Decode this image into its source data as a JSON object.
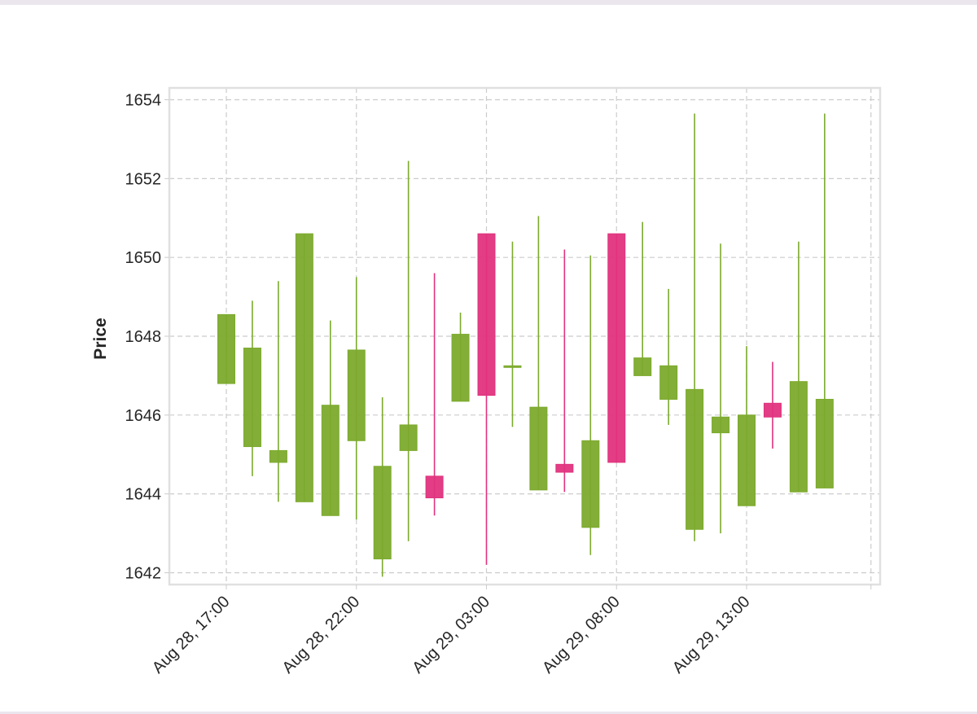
{
  "chart_data": {
    "type": "candlestick",
    "title": "",
    "xlabel": "",
    "ylabel": "Price",
    "ylim": [
      1641.7,
      1654.3
    ],
    "yticks": [
      1642,
      1644,
      1646,
      1648,
      1650,
      1652,
      1654
    ],
    "xticks": [
      {
        "index": 0,
        "label": "Aug 28, 17:00"
      },
      {
        "index": 5,
        "label": "Aug 28, 22:00"
      },
      {
        "index": 10,
        "label": "Aug 29, 03:00"
      },
      {
        "index": 15,
        "label": "Aug 29, 08:00"
      },
      {
        "index": 20,
        "label": "Aug 29, 13:00"
      }
    ],
    "colors": {
      "up": "#7caa2d",
      "down": "#e0337e",
      "grid": "#cccccc",
      "frame": "#e0e0e0"
    },
    "grid": true,
    "candles": [
      {
        "time": "Aug 28, 17:00",
        "open": 1648.55,
        "high": 1648.55,
        "low": 1646.8,
        "close": 1646.8,
        "dir": "up"
      },
      {
        "time": "Aug 28, 18:00",
        "open": 1647.7,
        "high": 1648.9,
        "low": 1644.45,
        "close": 1645.2,
        "dir": "up"
      },
      {
        "time": "Aug 28, 19:00",
        "open": 1645.1,
        "high": 1649.4,
        "low": 1643.8,
        "close": 1644.8,
        "dir": "up"
      },
      {
        "time": "Aug 28, 20:00",
        "open": 1650.6,
        "high": 1650.6,
        "low": 1643.8,
        "close": 1643.8,
        "dir": "up"
      },
      {
        "time": "Aug 28, 21:00",
        "open": 1646.25,
        "high": 1648.4,
        "low": 1643.45,
        "close": 1643.45,
        "dir": "up"
      },
      {
        "time": "Aug 28, 22:00",
        "open": 1647.65,
        "high": 1649.5,
        "low": 1643.35,
        "close": 1645.35,
        "dir": "up"
      },
      {
        "time": "Aug 28, 23:00",
        "open": 1644.7,
        "high": 1646.45,
        "low": 1641.9,
        "close": 1642.35,
        "dir": "up"
      },
      {
        "time": "Aug 29, 00:00",
        "open": 1645.75,
        "high": 1652.45,
        "low": 1642.8,
        "close": 1645.1,
        "dir": "up"
      },
      {
        "time": "Aug 29, 01:00",
        "open": 1644.45,
        "high": 1649.6,
        "low": 1643.45,
        "close": 1643.9,
        "dir": "down"
      },
      {
        "time": "Aug 29, 02:00",
        "open": 1648.05,
        "high": 1648.6,
        "low": 1646.35,
        "close": 1646.35,
        "dir": "up"
      },
      {
        "time": "Aug 29, 03:00",
        "open": 1650.6,
        "high": 1650.6,
        "low": 1642.2,
        "close": 1646.5,
        "dir": "down"
      },
      {
        "time": "Aug 29, 04:00",
        "open": 1647.25,
        "high": 1650.4,
        "low": 1645.7,
        "close": 1647.25,
        "dir": "up"
      },
      {
        "time": "Aug 29, 05:00",
        "open": 1646.2,
        "high": 1651.05,
        "low": 1644.1,
        "close": 1644.1,
        "dir": "up"
      },
      {
        "time": "Aug 29, 06:00",
        "open": 1644.75,
        "high": 1650.2,
        "low": 1644.05,
        "close": 1644.55,
        "dir": "down"
      },
      {
        "time": "Aug 29, 07:00",
        "open": 1645.35,
        "high": 1650.05,
        "low": 1642.45,
        "close": 1643.15,
        "dir": "up"
      },
      {
        "time": "Aug 29, 08:00",
        "open": 1650.6,
        "high": 1650.6,
        "low": 1644.8,
        "close": 1644.8,
        "dir": "down"
      },
      {
        "time": "Aug 29, 09:00",
        "open": 1647.45,
        "high": 1650.9,
        "low": 1647.0,
        "close": 1647.0,
        "dir": "up"
      },
      {
        "time": "Aug 29, 10:00",
        "open": 1647.25,
        "high": 1649.2,
        "low": 1645.75,
        "close": 1646.4,
        "dir": "up"
      },
      {
        "time": "Aug 29, 11:00",
        "open": 1646.65,
        "high": 1653.65,
        "low": 1642.8,
        "close": 1643.1,
        "dir": "up"
      },
      {
        "time": "Aug 29, 12:00",
        "open": 1645.95,
        "high": 1650.35,
        "low": 1643.0,
        "close": 1645.55,
        "dir": "up"
      },
      {
        "time": "Aug 29, 13:00",
        "open": 1646.0,
        "high": 1647.75,
        "low": 1643.7,
        "close": 1643.7,
        "dir": "up"
      },
      {
        "time": "Aug 29, 14:00",
        "open": 1646.3,
        "high": 1647.35,
        "low": 1645.15,
        "close": 1645.95,
        "dir": "down"
      },
      {
        "time": "Aug 29, 15:00",
        "open": 1646.85,
        "high": 1650.4,
        "low": 1644.05,
        "close": 1644.05,
        "dir": "up"
      },
      {
        "time": "Aug 29, 16:00",
        "open": 1646.4,
        "high": 1653.65,
        "low": 1644.15,
        "close": 1644.15,
        "dir": "up"
      }
    ]
  }
}
